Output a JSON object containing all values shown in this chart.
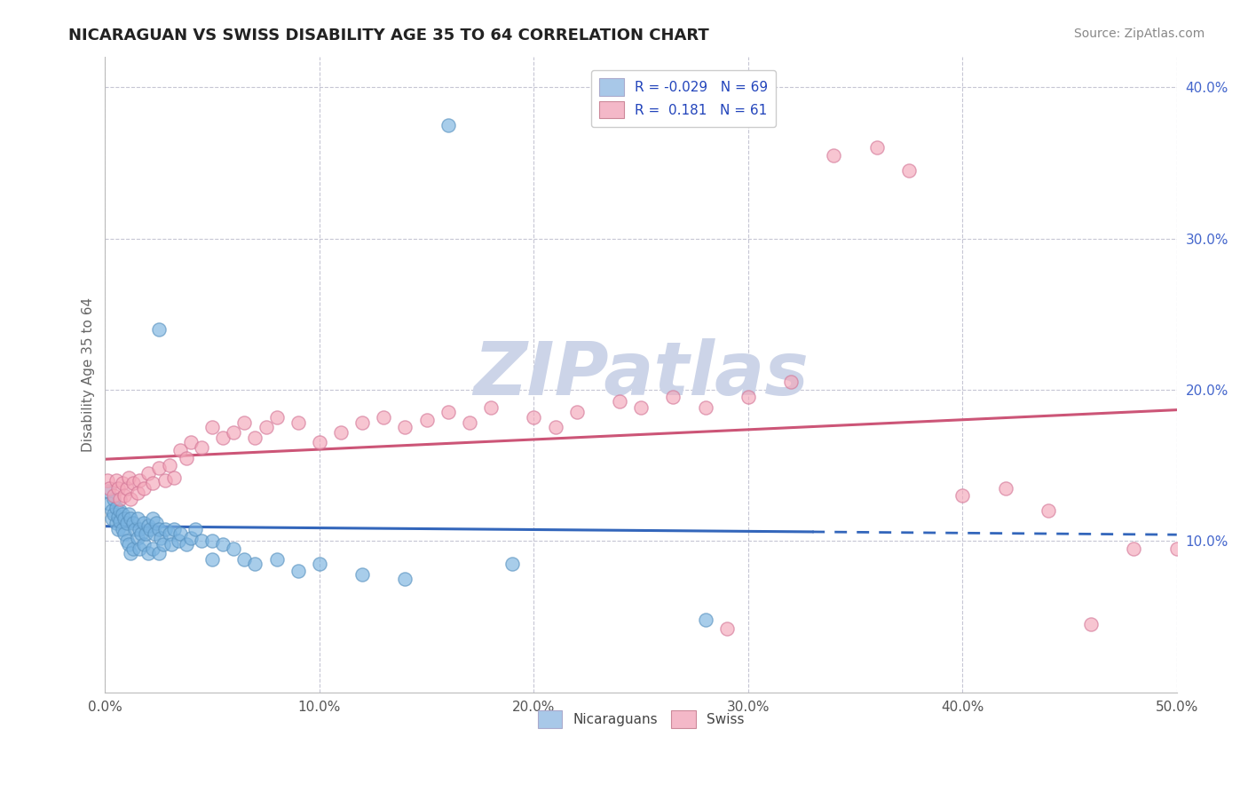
{
  "title": "NICARAGUAN VS SWISS DISABILITY AGE 35 TO 64 CORRELATION CHART",
  "source": "Source: ZipAtlas.com",
  "ylabel_label": "Disability Age 35 to 64",
  "xlim": [
    0.0,
    0.5
  ],
  "ylim": [
    0.0,
    0.42
  ],
  "xticks": [
    0.0,
    0.1,
    0.2,
    0.3,
    0.4,
    0.5
  ],
  "xtick_labels": [
    "0.0%",
    "10.0%",
    "20.0%",
    "30.0%",
    "40.0%",
    "50.0%"
  ],
  "yticks": [
    0.1,
    0.2,
    0.3,
    0.4
  ],
  "ytick_labels": [
    "10.0%",
    "20.0%",
    "30.0%",
    "40.0%"
  ],
  "nicaraguan_color": "#7ab3e0",
  "swiss_color": "#f4a7b9",
  "nicaraguan_edge": "#5a93c0",
  "swiss_edge": "#d47898",
  "nicaraguan_label": "Nicaraguans",
  "swiss_label": "Swiss",
  "R_nicaraguan": -0.029,
  "N_nicaraguan": 69,
  "R_swiss": 0.181,
  "N_swiss": 61,
  "legend_color_blue": "#a8c8e8",
  "legend_color_pink": "#f4b8c8",
  "nic_line_color": "#3366bb",
  "swiss_line_color": "#cc5577",
  "background_color": "#ffffff",
  "grid_color": "#c0c0d0",
  "watermark_color": "#ccd4e8",
  "title_fontsize": 13,
  "axis_fontsize": 11,
  "tick_fontsize": 11,
  "legend_fontsize": 11,
  "source_fontsize": 10,
  "nicaraguan_x": [
    0.001,
    0.002,
    0.003,
    0.003,
    0.004,
    0.004,
    0.005,
    0.005,
    0.006,
    0.006,
    0.007,
    0.007,
    0.008,
    0.008,
    0.009,
    0.009,
    0.01,
    0.01,
    0.011,
    0.011,
    0.012,
    0.012,
    0.013,
    0.013,
    0.014,
    0.015,
    0.015,
    0.016,
    0.016,
    0.017,
    0.018,
    0.018,
    0.019,
    0.02,
    0.02,
    0.021,
    0.022,
    0.022,
    0.023,
    0.024,
    0.025,
    0.025,
    0.026,
    0.027,
    0.028,
    0.03,
    0.031,
    0.032,
    0.034,
    0.035,
    0.038,
    0.04,
    0.042,
    0.045,
    0.05,
    0.055,
    0.06,
    0.065,
    0.07,
    0.08,
    0.09,
    0.1,
    0.12,
    0.14,
    0.16,
    0.19,
    0.28,
    0.05,
    0.025
  ],
  "nicaraguan_y": [
    0.133,
    0.125,
    0.12,
    0.115,
    0.128,
    0.118,
    0.122,
    0.112,
    0.116,
    0.108,
    0.12,
    0.113,
    0.118,
    0.108,
    0.115,
    0.105,
    0.112,
    0.1,
    0.118,
    0.098,
    0.115,
    0.092,
    0.112,
    0.095,
    0.108,
    0.115,
    0.102,
    0.108,
    0.095,
    0.105,
    0.112,
    0.098,
    0.105,
    0.11,
    0.092,
    0.108,
    0.115,
    0.095,
    0.105,
    0.112,
    0.108,
    0.092,
    0.102,
    0.098,
    0.108,
    0.105,
    0.098,
    0.108,
    0.1,
    0.105,
    0.098,
    0.102,
    0.108,
    0.1,
    0.1,
    0.098,
    0.095,
    0.088,
    0.085,
    0.088,
    0.08,
    0.085,
    0.078,
    0.075,
    0.375,
    0.085,
    0.048,
    0.088,
    0.24
  ],
  "swiss_x": [
    0.001,
    0.002,
    0.004,
    0.005,
    0.006,
    0.007,
    0.008,
    0.009,
    0.01,
    0.011,
    0.012,
    0.013,
    0.015,
    0.016,
    0.018,
    0.02,
    0.022,
    0.025,
    0.028,
    0.03,
    0.032,
    0.035,
    0.038,
    0.04,
    0.045,
    0.05,
    0.055,
    0.06,
    0.065,
    0.07,
    0.075,
    0.08,
    0.09,
    0.1,
    0.11,
    0.12,
    0.13,
    0.14,
    0.15,
    0.16,
    0.17,
    0.18,
    0.2,
    0.21,
    0.22,
    0.24,
    0.25,
    0.265,
    0.28,
    0.3,
    0.32,
    0.34,
    0.36,
    0.375,
    0.4,
    0.42,
    0.44,
    0.46,
    0.48,
    0.5,
    0.29
  ],
  "swiss_y": [
    0.14,
    0.135,
    0.13,
    0.14,
    0.135,
    0.128,
    0.138,
    0.13,
    0.135,
    0.142,
    0.128,
    0.138,
    0.132,
    0.14,
    0.135,
    0.145,
    0.138,
    0.148,
    0.14,
    0.15,
    0.142,
    0.16,
    0.155,
    0.165,
    0.162,
    0.175,
    0.168,
    0.172,
    0.178,
    0.168,
    0.175,
    0.182,
    0.178,
    0.165,
    0.172,
    0.178,
    0.182,
    0.175,
    0.18,
    0.185,
    0.178,
    0.188,
    0.182,
    0.175,
    0.185,
    0.192,
    0.188,
    0.195,
    0.188,
    0.195,
    0.205,
    0.355,
    0.36,
    0.345,
    0.13,
    0.135,
    0.12,
    0.045,
    0.095,
    0.095,
    0.042
  ],
  "nic_line_solid_end": 0.33,
  "swiss_line_solid_end": 0.5
}
